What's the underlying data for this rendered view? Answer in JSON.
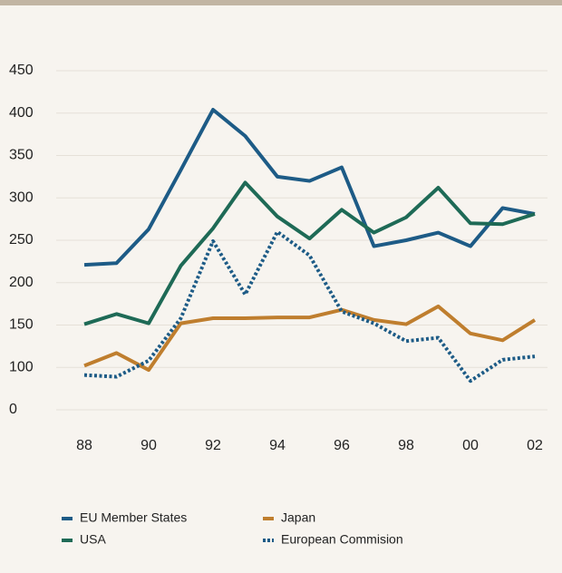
{
  "chart_data": {
    "type": "line",
    "categories": [
      "88",
      null,
      "90",
      null,
      "92",
      null,
      "94",
      null,
      "96",
      null,
      "98",
      null,
      "00",
      null,
      "02"
    ],
    "series": [
      {
        "name": "EU Member States",
        "color": "#1d5b86",
        "dash": "solid",
        "values": [
          221,
          223,
          263,
          333,
          404,
          373,
          325,
          320,
          336,
          243,
          250,
          259,
          243,
          288,
          281
        ]
      },
      {
        "name": "Japan",
        "color": "#bf7e2e",
        "dash": "solid",
        "values": [
          102,
          117,
          97,
          152,
          158,
          158,
          159,
          159,
          168,
          156,
          151,
          172,
          140,
          132,
          156
        ]
      },
      {
        "name": "USA",
        "color": "#1e6a56",
        "dash": "solid",
        "values": [
          151,
          163,
          152,
          220,
          264,
          318,
          278,
          252,
          286,
          259,
          277,
          312,
          270,
          269,
          281
        ]
      },
      {
        "name": "European Commision",
        "color": "#1d5b86",
        "dash": "dotted",
        "values": [
          91,
          89,
          108,
          158,
          249,
          186,
          260,
          232,
          166,
          152,
          131,
          135,
          84,
          109,
          113
        ]
      }
    ],
    "ylim": [
      50,
      450
    ],
    "yticks": [
      {
        "value": 50,
        "label": "0"
      },
      100,
      150,
      200,
      250,
      300,
      350,
      400,
      450
    ],
    "grid": true
  }
}
